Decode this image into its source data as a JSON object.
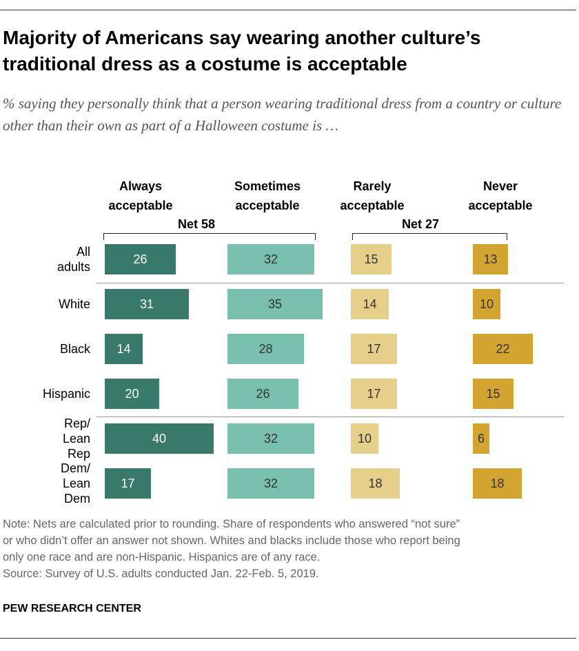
{
  "title": "Majority of Americans say wearing another culture’s traditional dress as a costume is acceptable",
  "subtitle": "% saying they personally think that a person wearing traditional dress from a country or culture other than their own as part of a Halloween costume is …",
  "colors": {
    "always": "#3a7a6a",
    "sometimes": "#78bfae",
    "rarely": "#e6cf8a",
    "never": "#d3a42f"
  },
  "chart_data": {
    "type": "bar",
    "orientation": "horizontal",
    "categories": [
      "All adults",
      "White",
      "Black",
      "Hispanic",
      "Rep/ Lean Rep",
      "Dem/ Lean Dem"
    ],
    "series": [
      {
        "name": "Always acceptable",
        "values": [
          26,
          31,
          14,
          20,
          40,
          17
        ]
      },
      {
        "name": "Sometimes acceptable",
        "values": [
          32,
          35,
          28,
          26,
          32,
          32
        ]
      },
      {
        "name": "Rarely acceptable",
        "values": [
          15,
          14,
          17,
          17,
          10,
          18
        ]
      },
      {
        "name": "Never acceptable",
        "values": [
          13,
          10,
          22,
          15,
          6,
          18
        ]
      }
    ],
    "nets": [
      {
        "label": "Net 58",
        "spans": [
          "Always acceptable",
          "Sometimes acceptable"
        ]
      },
      {
        "label": "Net 27",
        "spans": [
          "Rarely acceptable",
          "Never acceptable"
        ]
      }
    ]
  },
  "notes": [
    "Note: Nets are calculated prior to rounding. Share of respondents who answered “not sure”",
    "or who didn’t offer an answer not shown. Whites and blacks include those who report being",
    "only one race and are non-Hispanic. Hispanics are of any race.",
    "Source: Survey of U.S. adults conducted Jan. 22-Feb. 5, 2019."
  ],
  "brand": "PEW RESEARCH CENTER"
}
